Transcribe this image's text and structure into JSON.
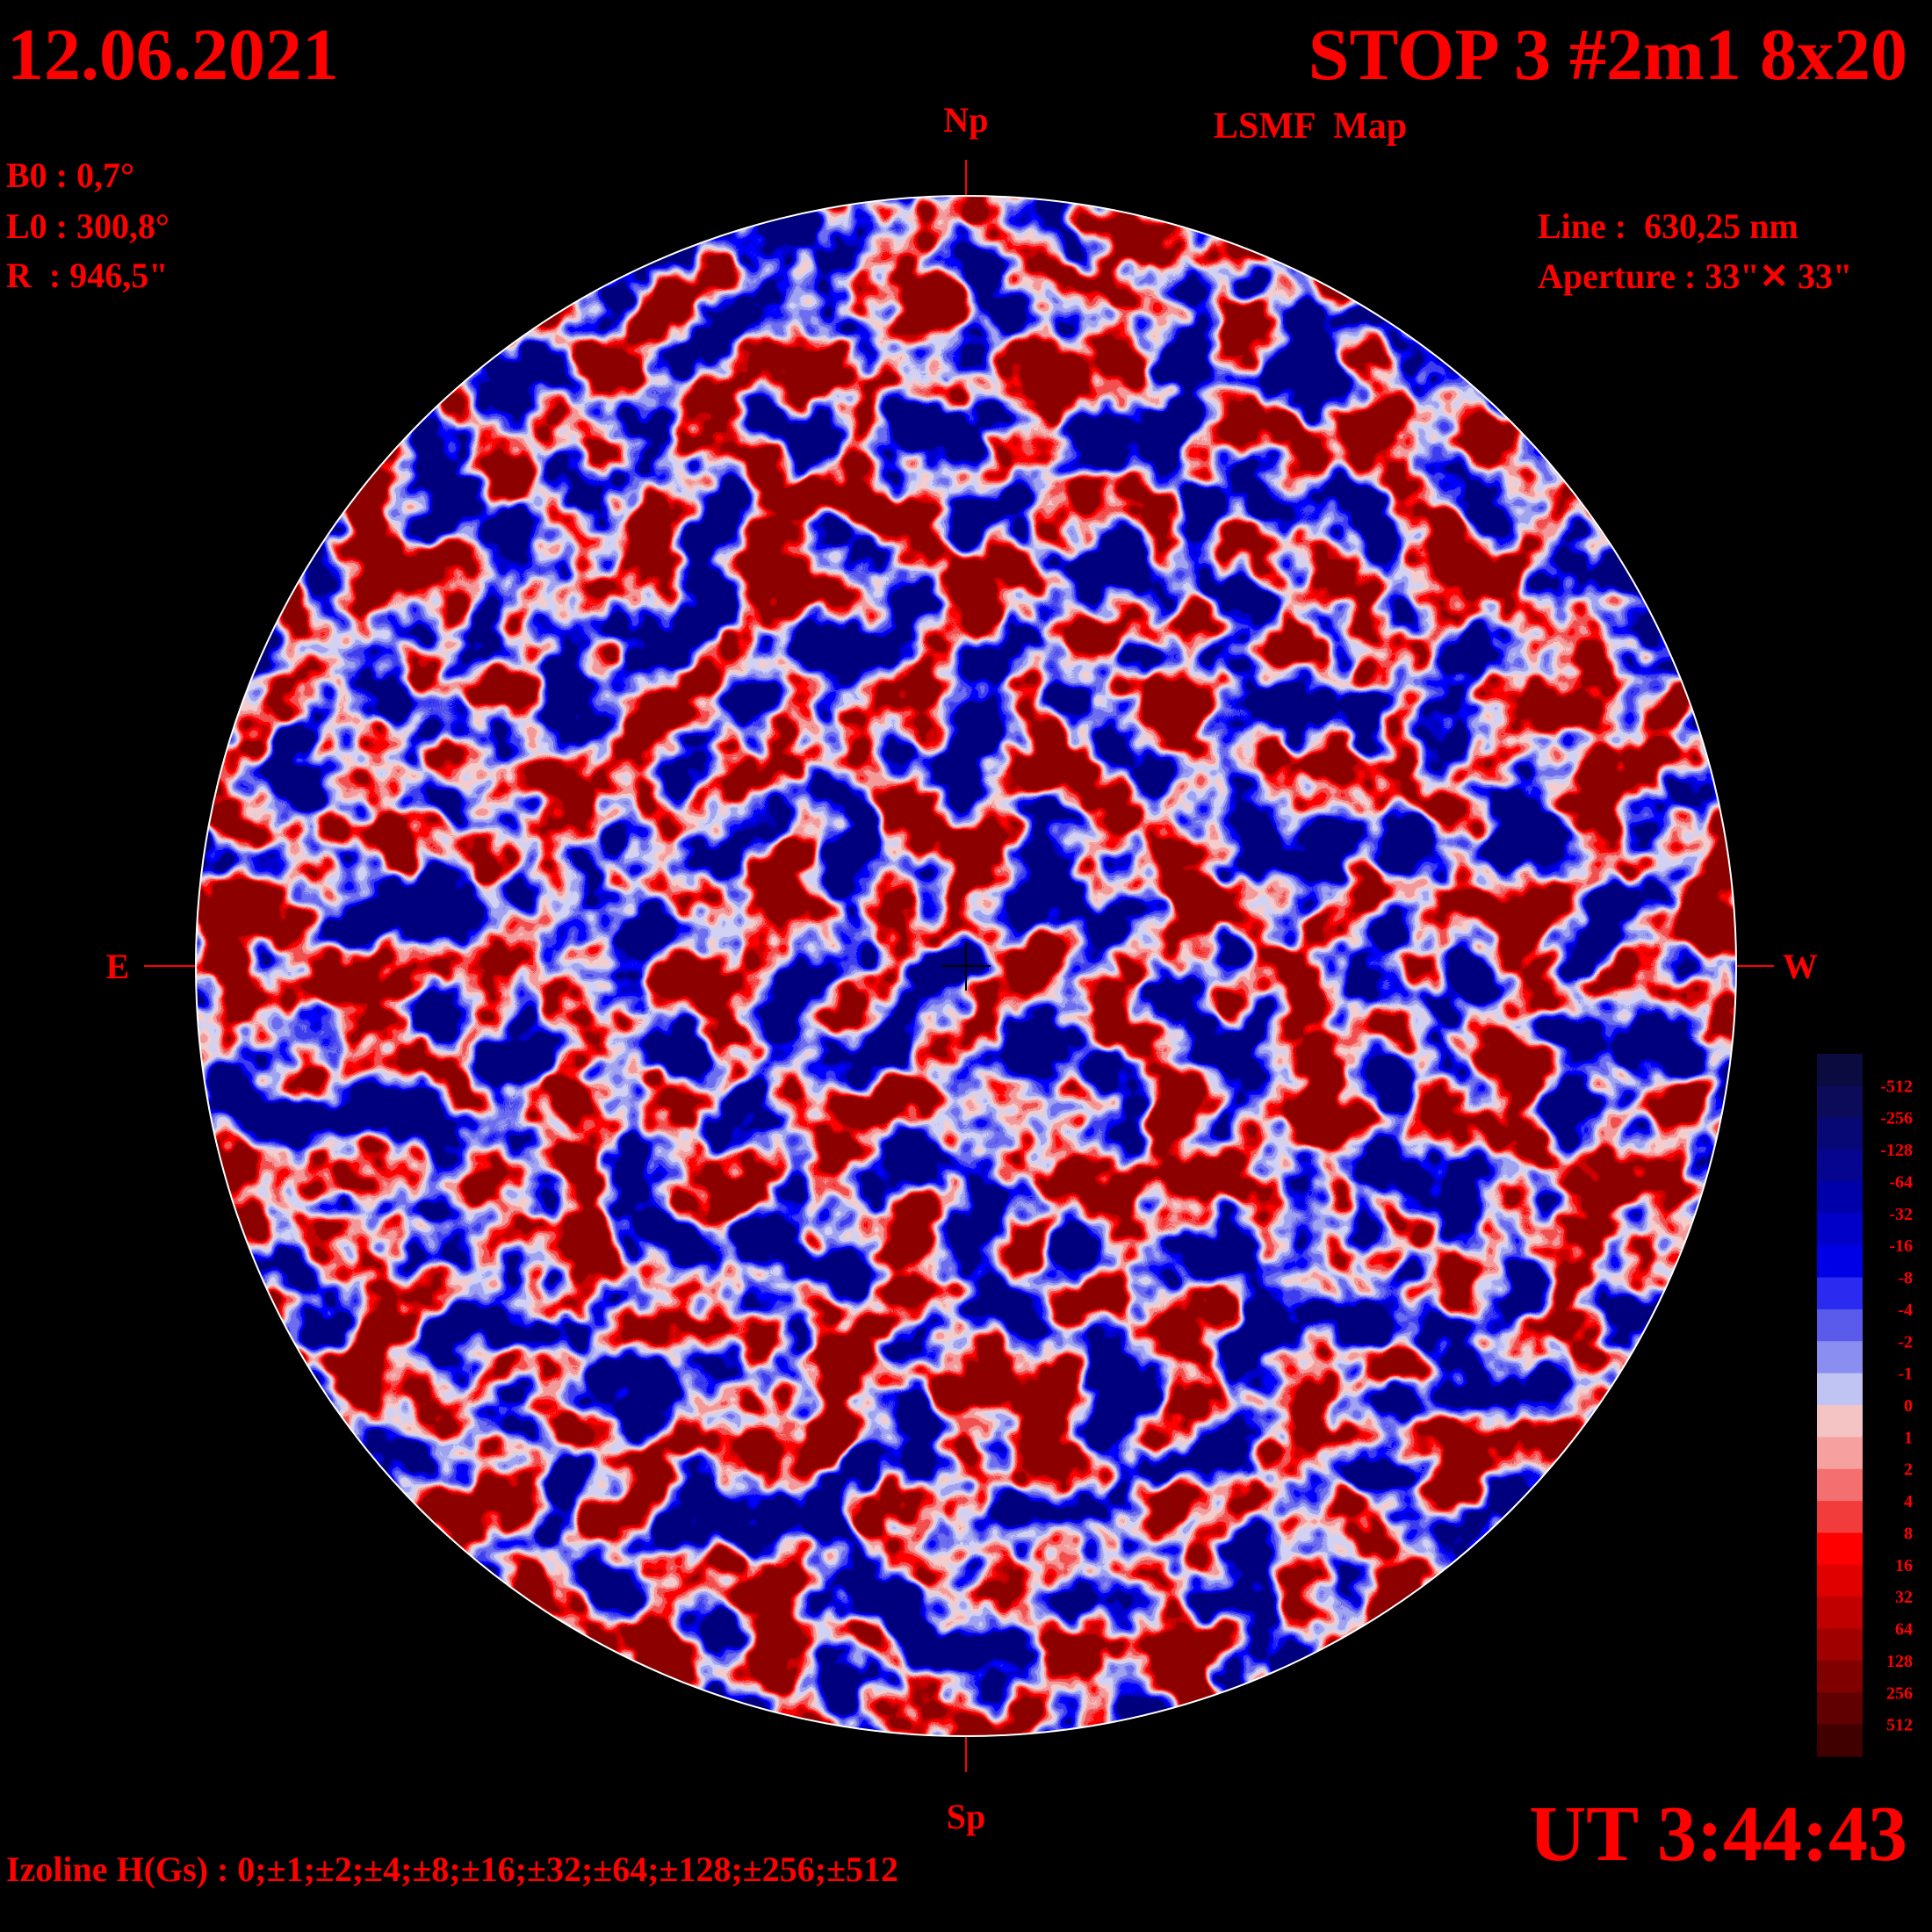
{
  "header": {
    "date": "12.06.2021",
    "title": "STOP 3 #2m1 8x20",
    "subtitle": "LSMF  Map",
    "time": "UT 3:44:43"
  },
  "parameters": [
    "B0 : 0,7°",
    "L0 : 300,8°",
    "R  : 946,5\""
  ],
  "instrument": [
    "Line :  630,25 nm",
    "Aperture : 33\"✕ 33\""
  ],
  "directions": {
    "north": "Np",
    "south": "Sp",
    "east": "E",
    "west": "W"
  },
  "izoline": "Izoline H(Gs) : 0;±1;±2;±4;±8;±16;±32;±64;±128;±256;±512",
  "colorbar": {
    "levels": [
      -512,
      -256,
      -128,
      -64,
      -32,
      -16,
      -8,
      -4,
      -2,
      -1,
      0,
      1,
      2,
      4,
      8,
      16,
      32,
      64,
      128,
      256,
      512
    ],
    "colors": [
      "#0b0b40",
      "#0b0b5a",
      "#070775",
      "#05058f",
      "#0000aa",
      "#0000c8",
      "#0000e6",
      "#2a2af0",
      "#5a5aeb",
      "#8a8ef0",
      "#c0c4f2",
      "#f4c4c4",
      "#f6a0a0",
      "#f47070",
      "#f23c3c",
      "#ff0000",
      "#e00000",
      "#c00000",
      "#a00000",
      "#800000",
      "#600000",
      "#400000"
    ]
  }
}
